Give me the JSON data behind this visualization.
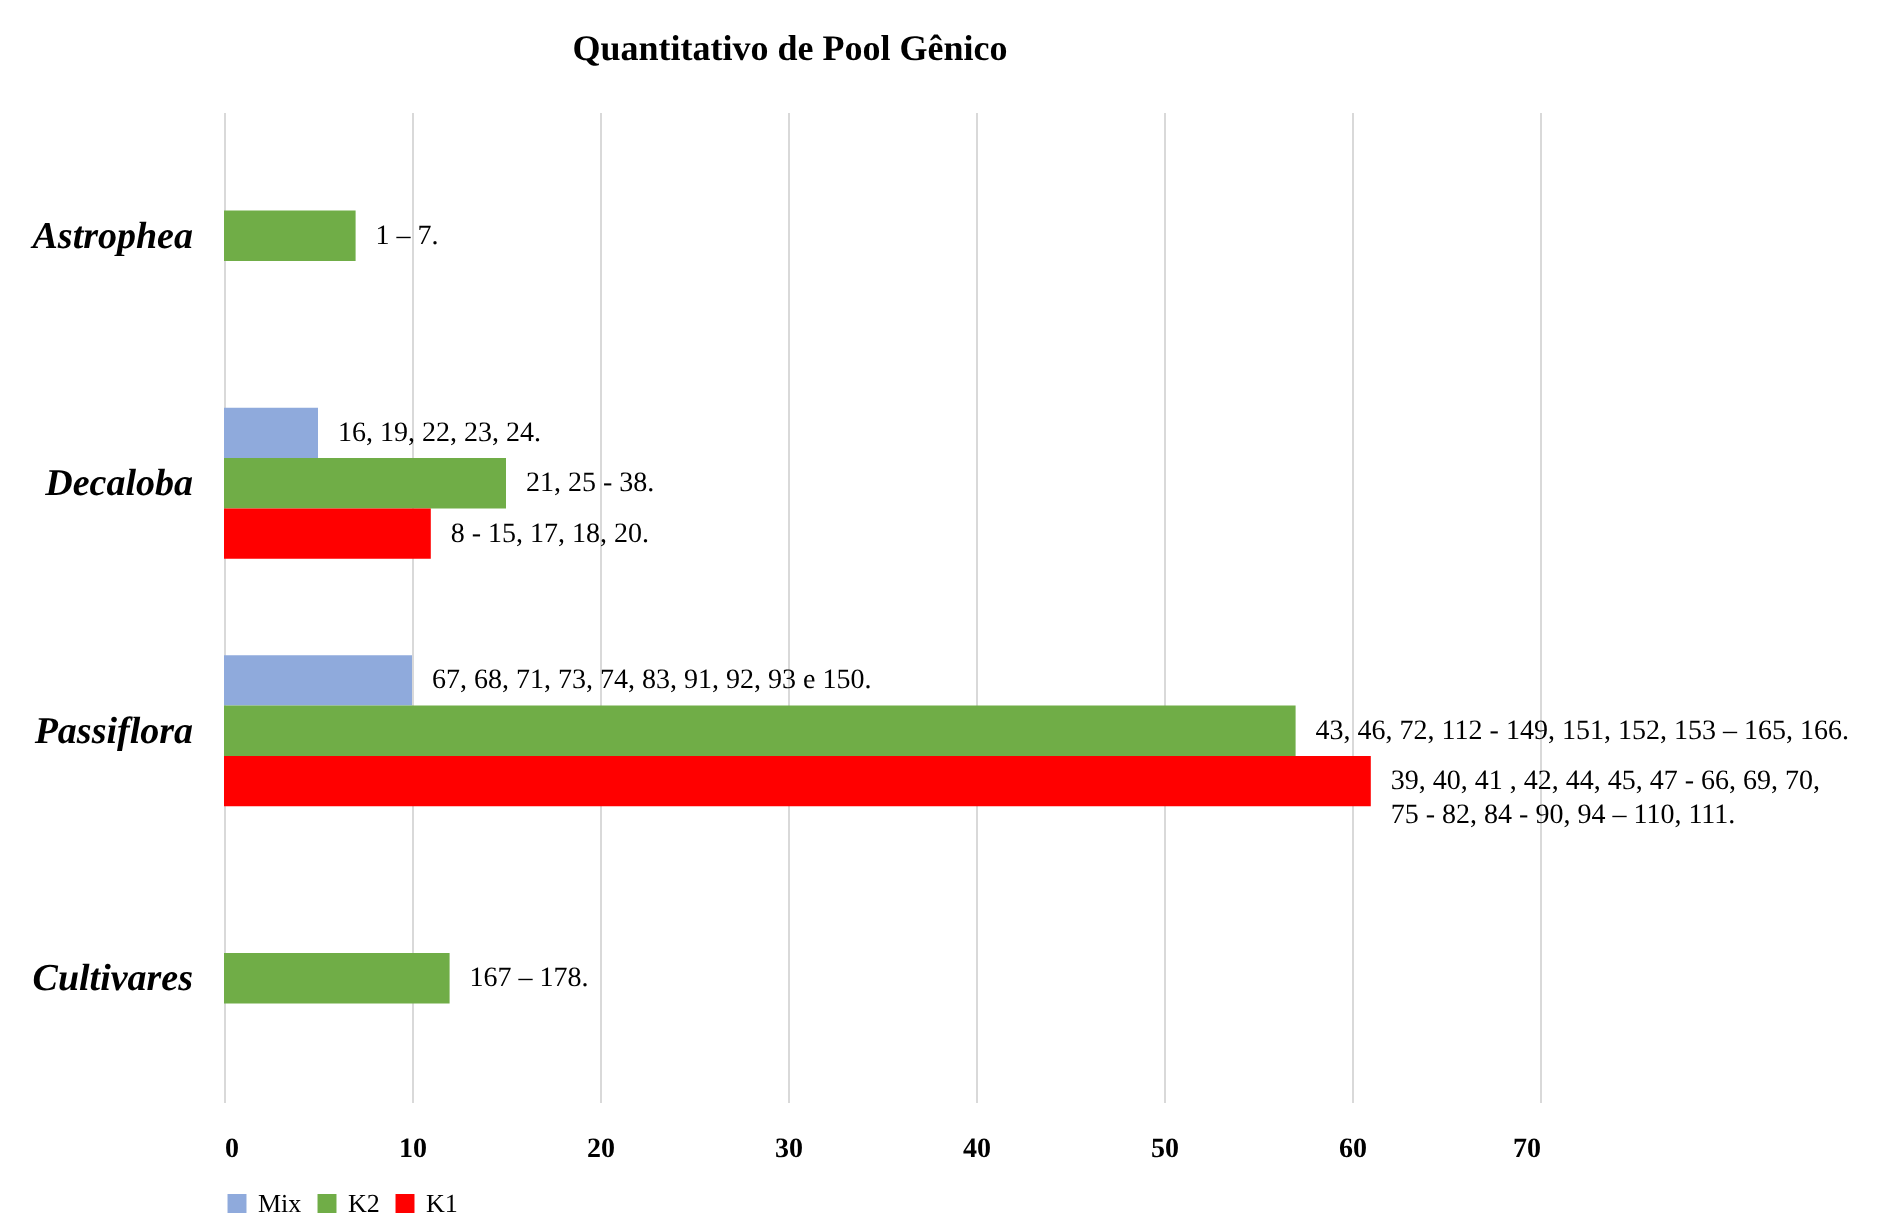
{
  "chart_data": {
    "type": "bar",
    "orientation": "horizontal",
    "title": "Quantitativo de Pool Gênico",
    "categories": [
      "Astrophea",
      "Decaloba",
      "Passiflora",
      "Cultivares"
    ],
    "series": [
      {
        "name": "Mix",
        "color": "#8faadc",
        "values": [
          null,
          5,
          10,
          null
        ]
      },
      {
        "name": "K2",
        "color": "#70ad47",
        "values": [
          7,
          15,
          57,
          12
        ]
      },
      {
        "name": "K1",
        "color": "#ff0000",
        "values": [
          null,
          11,
          61,
          null
        ]
      }
    ],
    "annotations": [
      "1 – 7.",
      "16, 19, 22, 23, 24.",
      "21, 25 - 38.",
      "8 - 15, 17, 18, 20.",
      "67, 68, 71, 73, 74, 83, 91, 92, 93 e 150.",
      "43, 46, 72, 112 - 149, 151, 152, 153 – 165, 166.",
      "39, 40, 41 , 42, 44, 45, 47 - 66, 69, 70,\n75 - 82, 84 - 90, 94 – 110, 111.",
      "167 – 178."
    ],
    "xlim": [
      0,
      70
    ],
    "xticks": [
      0,
      10,
      20,
      30,
      40,
      50,
      60,
      70
    ],
    "grid": "x",
    "legend": "bottom"
  }
}
